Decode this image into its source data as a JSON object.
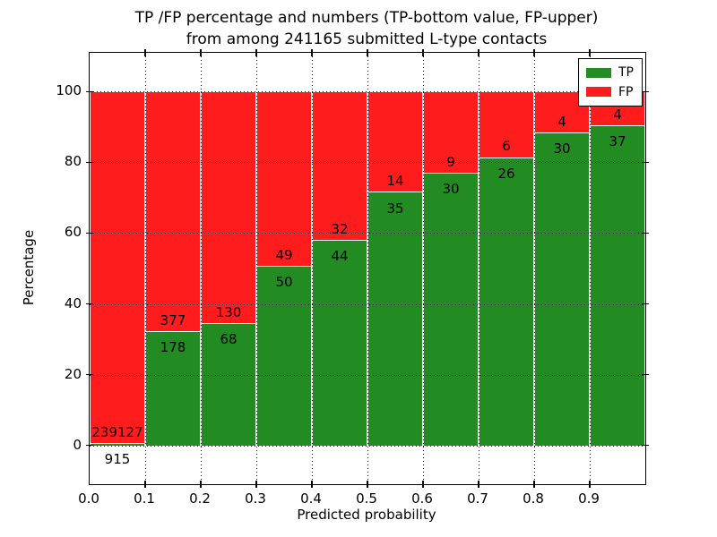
{
  "figure": {
    "title_line1": "TP /FP percentage and numbers (TP-bottom value, FP-upper)",
    "title_line2": "from among 241165 submitted L-type contacts"
  },
  "legend": {
    "position": "upper right",
    "entries": [
      {
        "label": "TP",
        "color": "#228b22"
      },
      {
        "label": "FP",
        "color": "#ff1c1c"
      }
    ]
  },
  "chart_data": {
    "type": "bar",
    "stacked": true,
    "title": "TP /FP percentage and numbers (TP-bottom value, FP-upper)\nfrom among 241165 submitted L-type contacts",
    "xlabel": "Predicted probability",
    "ylabel": "Percentage",
    "total_contacts": 241165,
    "bins": [
      "0.0-0.1",
      "0.1-0.2",
      "0.2-0.3",
      "0.3-0.4",
      "0.4-0.5",
      "0.5-0.6",
      "0.6-0.7",
      "0.7-0.8",
      "0.8-0.9",
      "0.9-1.0"
    ],
    "x_tick_labels": [
      "0.0",
      "0.1",
      "0.2",
      "0.3",
      "0.4",
      "0.5",
      "0.6",
      "0.7",
      "0.8",
      "0.9"
    ],
    "y_ticks": [
      0,
      20,
      40,
      60,
      80,
      100
    ],
    "xlim": [
      0.0,
      1.0
    ],
    "ylim": [
      -11,
      111
    ],
    "grid": "dotted",
    "series": [
      {
        "name": "TP",
        "color": "#228b22",
        "counts": [
          915,
          178,
          68,
          50,
          44,
          35,
          30,
          26,
          30,
          37
        ]
      },
      {
        "name": "FP",
        "color": "#ff1c1c",
        "counts": [
          239127,
          377,
          130,
          49,
          32,
          14,
          9,
          6,
          4,
          4
        ]
      }
    ],
    "tp_percent": [
      0.38,
      32.07,
      34.34,
      50.51,
      57.89,
      71.43,
      76.92,
      81.25,
      88.24,
      90.24
    ],
    "fp_percent": [
      99.62,
      67.93,
      65.66,
      49.49,
      42.11,
      28.57,
      23.08,
      18.75,
      11.76,
      9.76
    ]
  }
}
